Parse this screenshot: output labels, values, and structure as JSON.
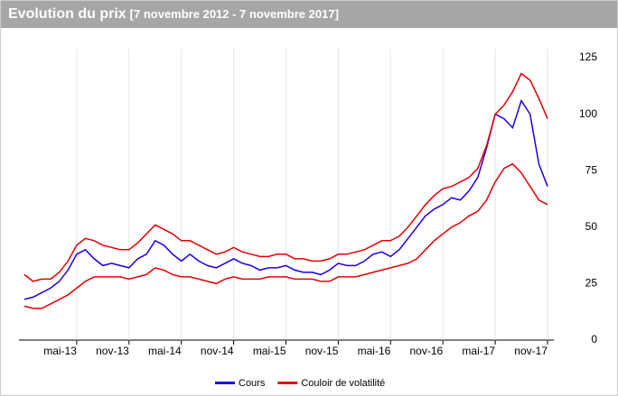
{
  "chart_data": {
    "type": "line",
    "title": "Evolution du prix",
    "subtitle": "[7 novembre 2012 - 7 novembre 2017]",
    "x": [
      "2012-11",
      "2012-12",
      "2013-01",
      "2013-02",
      "2013-03",
      "2013-04",
      "2013-05",
      "2013-06",
      "2013-07",
      "2013-08",
      "2013-09",
      "2013-10",
      "2013-11",
      "2013-12",
      "2014-01",
      "2014-02",
      "2014-03",
      "2014-04",
      "2014-05",
      "2014-06",
      "2014-07",
      "2014-08",
      "2014-09",
      "2014-10",
      "2014-11",
      "2014-12",
      "2015-01",
      "2015-02",
      "2015-03",
      "2015-04",
      "2015-05",
      "2015-06",
      "2015-07",
      "2015-08",
      "2015-09",
      "2015-10",
      "2015-11",
      "2015-12",
      "2016-01",
      "2016-02",
      "2016-03",
      "2016-04",
      "2016-05",
      "2016-06",
      "2016-07",
      "2016-08",
      "2016-09",
      "2016-10",
      "2016-11",
      "2016-12",
      "2017-01",
      "2017-02",
      "2017-03",
      "2017-04",
      "2017-05",
      "2017-06",
      "2017-07",
      "2017-08",
      "2017-09",
      "2017-10",
      "2017-11"
    ],
    "series": [
      {
        "name": "Cours",
        "color": "#1a00e6",
        "values": [
          18,
          19,
          21,
          23,
          26,
          31,
          38,
          40,
          36,
          33,
          34,
          33,
          32,
          36,
          38,
          44,
          42,
          38,
          35,
          38,
          35,
          33,
          32,
          34,
          36,
          34,
          33,
          31,
          32,
          32,
          33,
          31,
          30,
          30,
          29,
          31,
          34,
          33,
          33,
          35,
          38,
          39,
          37,
          40,
          45,
          50,
          55,
          58,
          60,
          63,
          62,
          66,
          72,
          85,
          100,
          98,
          94,
          106,
          100,
          78,
          68
        ]
      },
      {
        "name": "Couloir de volatilité",
        "color": "#e60000",
        "values": [
          29,
          26,
          27,
          27,
          30,
          35,
          42,
          45,
          44,
          42,
          41,
          40,
          40,
          43,
          47,
          51,
          49,
          47,
          44,
          44,
          42,
          40,
          38,
          39,
          41,
          39,
          38,
          37,
          37,
          38,
          38,
          36,
          36,
          35,
          35,
          36,
          38,
          38,
          39,
          40,
          42,
          44,
          44,
          46,
          50,
          55,
          60,
          64,
          67,
          68,
          70,
          72,
          76,
          86,
          100,
          104,
          110,
          118,
          115,
          107,
          98
        ],
        "lower": [
          15,
          14,
          14,
          16,
          18,
          20,
          23,
          26,
          28,
          28,
          28,
          28,
          27,
          28,
          29,
          32,
          31,
          29,
          28,
          28,
          27,
          26,
          25,
          27,
          28,
          27,
          27,
          27,
          28,
          28,
          28,
          27,
          27,
          27,
          26,
          26,
          28,
          28,
          28,
          29,
          30,
          31,
          32,
          33,
          34,
          36,
          40,
          44,
          47,
          50,
          52,
          55,
          57,
          62,
          70,
          76,
          78,
          74,
          68,
          62,
          60
        ]
      }
    ],
    "xlim": [
      "2012-11",
      "2017-11"
    ],
    "xticks": [
      {
        "value": "2013-05",
        "label": "mai-13"
      },
      {
        "value": "2013-11",
        "label": "nov-13"
      },
      {
        "value": "2014-05",
        "label": "mai-14"
      },
      {
        "value": "2014-11",
        "label": "nov-14"
      },
      {
        "value": "2015-05",
        "label": "mai-15"
      },
      {
        "value": "2015-11",
        "label": "nov-15"
      },
      {
        "value": "2016-05",
        "label": "mai-16"
      },
      {
        "value": "2016-11",
        "label": "nov-16"
      },
      {
        "value": "2017-05",
        "label": "mai-17"
      },
      {
        "value": "2017-11",
        "label": "nov-17"
      }
    ],
    "ylim": [
      0,
      125
    ],
    "yticks": [
      0,
      25,
      50,
      75,
      100,
      125
    ],
    "grid": true
  }
}
